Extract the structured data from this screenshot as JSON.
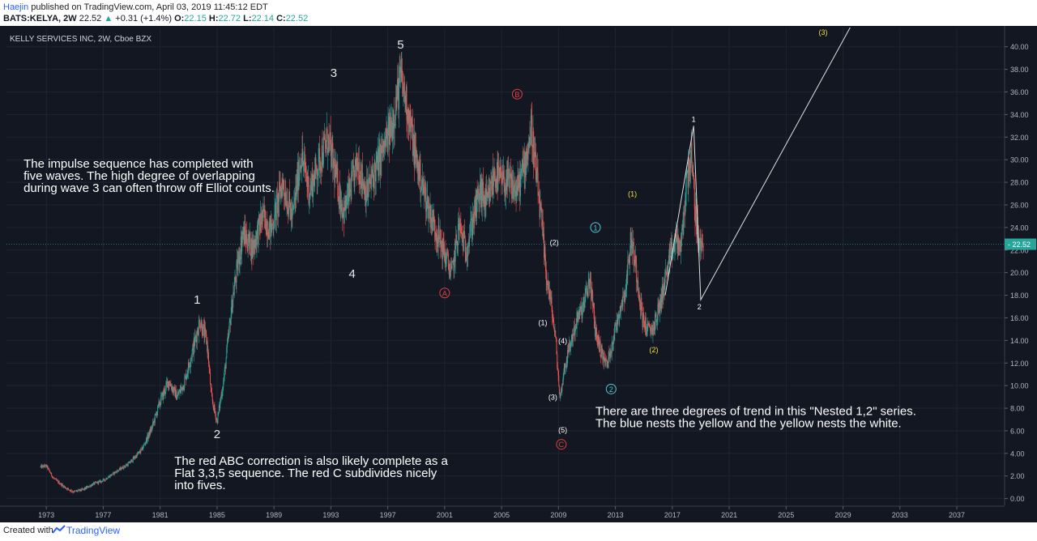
{
  "header": {
    "author": "Haejin",
    "published": " published on TradingView.com, April 03, 2019 11:45:12 EDT",
    "symbol": "BATS:KELYA, 2W",
    "last": "22.52",
    "change": "+0.31 (+1.4%)",
    "o_label": "O:",
    "o_value": "22.15",
    "h_label": "H:",
    "h_value": "22.72",
    "l_label": "L:",
    "l_value": "22.14",
    "c_label": "C:",
    "c_value": "22.52"
  },
  "footer": {
    "created": "Created with",
    "brand": "TradingView"
  },
  "colors": {
    "bg": "#131722",
    "up": "#26a69a",
    "down": "#ef5350",
    "grid": "#1f2433",
    "red_wave": "#e04040",
    "blue_wave": "#4ec9d6",
    "yellow_wave": "#f0e040",
    "price_tag": "#26a69a"
  },
  "chart_data": {
    "type": "candlestick",
    "title": "KELLY SERVICES INC, 2W, Cboe BZX",
    "x_range": [
      1970.2,
      2040.3
    ],
    "ylim": [
      -0.6,
      41.7
    ],
    "y_ticks": [
      "0.00",
      "2.00",
      "4.00",
      "6.00",
      "8.00",
      "10.00",
      "12.00",
      "14.00",
      "16.00",
      "18.00",
      "20.00",
      "22.00",
      "24.00",
      "26.00",
      "28.00",
      "30.00",
      "32.00",
      "34.00",
      "36.00",
      "38.00",
      "40.00"
    ],
    "x_ticks": [
      "1973",
      "1977",
      "1981",
      "1985",
      "1989",
      "1993",
      "1997",
      "2001",
      "2005",
      "2009",
      "2013",
      "2017",
      "2021",
      "2025",
      "2029",
      "2033",
      "2037"
    ],
    "last_price": "22.52",
    "price_path": [
      [
        1972.6,
        2.8
      ],
      [
        1973.0,
        2.9
      ],
      [
        1973.5,
        1.8
      ],
      [
        1974.3,
        1.0
      ],
      [
        1974.9,
        0.6
      ],
      [
        1975.6,
        0.8
      ],
      [
        1976.3,
        1.3
      ],
      [
        1977.0,
        1.6
      ],
      [
        1977.8,
        2.3
      ],
      [
        1978.8,
        3.1
      ],
      [
        1979.7,
        4.3
      ],
      [
        1980.4,
        6.2
      ],
      [
        1981.0,
        8.6
      ],
      [
        1981.6,
        10.4
      ],
      [
        1982.2,
        9.0
      ],
      [
        1982.7,
        10.3
      ],
      [
        1983.3,
        13.2
      ],
      [
        1983.8,
        15.8
      ],
      [
        1984.3,
        13.8
      ],
      [
        1984.6,
        9.0
      ],
      [
        1985.0,
        6.8
      ],
      [
        1985.5,
        10.8
      ],
      [
        1986.1,
        17.8
      ],
      [
        1986.8,
        23.5
      ],
      [
        1987.5,
        22.2
      ],
      [
        1988.2,
        25.0
      ],
      [
        1988.8,
        23.8
      ],
      [
        1989.6,
        28.0
      ],
      [
        1990.3,
        24.8
      ],
      [
        1990.9,
        30.5
      ],
      [
        1991.5,
        27.2
      ],
      [
        1992.2,
        30.0
      ],
      [
        1992.8,
        31.8
      ],
      [
        1993.4,
        28.2
      ],
      [
        1993.9,
        25.3
      ],
      [
        1994.4,
        27.5
      ],
      [
        1994.9,
        29.8
      ],
      [
        1995.5,
        27.0
      ],
      [
        1996.1,
        29.0
      ],
      [
        1996.8,
        31.2
      ],
      [
        1997.3,
        33.2
      ],
      [
        1997.9,
        37.2
      ],
      [
        1998.4,
        34.5
      ],
      [
        1998.9,
        30.5
      ],
      [
        1999.4,
        27.8
      ],
      [
        2000.1,
        24.8
      ],
      [
        2000.6,
        23.0
      ],
      [
        2001.1,
        21.3
      ],
      [
        2001.5,
        19.8
      ],
      [
        2002.0,
        24.2
      ],
      [
        2002.5,
        22.0
      ],
      [
        2003.0,
        24.8
      ],
      [
        2003.5,
        27.2
      ],
      [
        2004.0,
        26.0
      ],
      [
        2004.5,
        28.8
      ],
      [
        2005.0,
        28.0
      ],
      [
        2005.6,
        27.8
      ],
      [
        2006.1,
        27.2
      ],
      [
        2006.6,
        29.5
      ],
      [
        2007.1,
        32.8
      ],
      [
        2007.4,
        29.0
      ],
      [
        2007.8,
        24.5
      ],
      [
        2008.1,
        20.2
      ],
      [
        2008.5,
        17.0
      ],
      [
        2008.8,
        14.0
      ],
      [
        2009.1,
        8.8
      ],
      [
        2009.4,
        11.5
      ],
      [
        2009.8,
        13.5
      ],
      [
        2010.3,
        15.8
      ],
      [
        2010.8,
        17.2
      ],
      [
        2011.2,
        19.5
      ],
      [
        2011.6,
        14.8
      ],
      [
        2012.0,
        13.0
      ],
      [
        2012.4,
        11.8
      ],
      [
        2012.9,
        14.5
      ],
      [
        2013.3,
        16.8
      ],
      [
        2013.7,
        18.5
      ],
      [
        2014.1,
        23.0
      ],
      [
        2014.5,
        20.0
      ],
      [
        2014.9,
        16.0
      ],
      [
        2015.3,
        14.8
      ],
      [
        2015.7,
        15.2
      ],
      [
        2016.1,
        17.0
      ],
      [
        2016.5,
        19.5
      ],
      [
        2016.9,
        21.5
      ],
      [
        2017.3,
        23.0
      ],
      [
        2017.6,
        22.0
      ],
      [
        2018.0,
        28.0
      ],
      [
        2018.3,
        30.5
      ],
      [
        2018.6,
        25.5
      ],
      [
        2018.9,
        22.2
      ],
      [
        2019.2,
        22.52
      ]
    ],
    "waves": [
      {
        "label": "5",
        "x": 1997.9,
        "y": 40.2,
        "style": "large"
      },
      {
        "label": "3",
        "x": 1993.2,
        "y": 37.7,
        "style": "large"
      },
      {
        "label": "4",
        "x": 1994.5,
        "y": 19.9,
        "style": "large"
      },
      {
        "label": "1",
        "x": 1983.6,
        "y": 17.6,
        "style": "large"
      },
      {
        "label": "2",
        "x": 1985.0,
        "y": 5.7,
        "style": "large"
      },
      {
        "label": "A",
        "x": 2001.0,
        "y": 18.2,
        "style": "red-circle"
      },
      {
        "label": "B",
        "x": 2006.1,
        "y": 35.8,
        "style": "red-circle"
      },
      {
        "label": "C",
        "x": 2009.2,
        "y": 4.8,
        "style": "red-circle"
      },
      {
        "label": "1",
        "x": 2011.6,
        "y": 24.0,
        "style": "blue-circle"
      },
      {
        "label": "2",
        "x": 2012.7,
        "y": 9.7,
        "style": "blue-circle"
      },
      {
        "label": "(1)",
        "x": 2014.2,
        "y": 27.0,
        "style": "yellow"
      },
      {
        "label": "(2)",
        "x": 2015.7,
        "y": 13.2,
        "style": "yellow"
      },
      {
        "label": "(3)",
        "x": 2027.6,
        "y": 41.3,
        "style": "yellow"
      },
      {
        "label": "(2)",
        "x": 2008.7,
        "y": 22.7,
        "style": "white-small"
      },
      {
        "label": "(1)",
        "x": 2007.9,
        "y": 15.6,
        "style": "white-small"
      },
      {
        "label": "(4)",
        "x": 2009.3,
        "y": 14.0,
        "style": "white-small"
      },
      {
        "label": "(3)",
        "x": 2008.6,
        "y": 9.0,
        "style": "white-small"
      },
      {
        "label": "(5)",
        "x": 2009.3,
        "y": 6.1,
        "style": "white-small"
      },
      {
        "label": "1",
        "x": 2018.5,
        "y": 33.6,
        "style": "white-small"
      },
      {
        "label": "2",
        "x": 2018.9,
        "y": 17.0,
        "style": "white-small"
      }
    ],
    "trend_lines": [
      [
        [
          2016.5,
          18.0
        ],
        [
          2018.5,
          33.0
        ],
        [
          2019.0,
          17.6
        ],
        [
          2029.5,
          41.7
        ]
      ]
    ],
    "annotations": [
      {
        "lines": [
          "The impulse sequence has completed with",
          "five waves. The high degree of overlapping",
          "during wave 3 can often throw off Elliot counts."
        ],
        "x": 1971.4,
        "y": 29.3
      },
      {
        "lines": [
          "There are three degrees of trend in this \"Nested 1,2\" series.",
          "The blue nests the yellow and the yellow nests the white."
        ],
        "x": 2011.6,
        "y": 7.4
      },
      {
        "lines": [
          "The red ABC correction is also likely complete as a",
          "Flat 3,3,5 sequence. The red C subdivides nicely",
          "into fives."
        ],
        "x": 1982.0,
        "y": 3.0
      }
    ]
  }
}
